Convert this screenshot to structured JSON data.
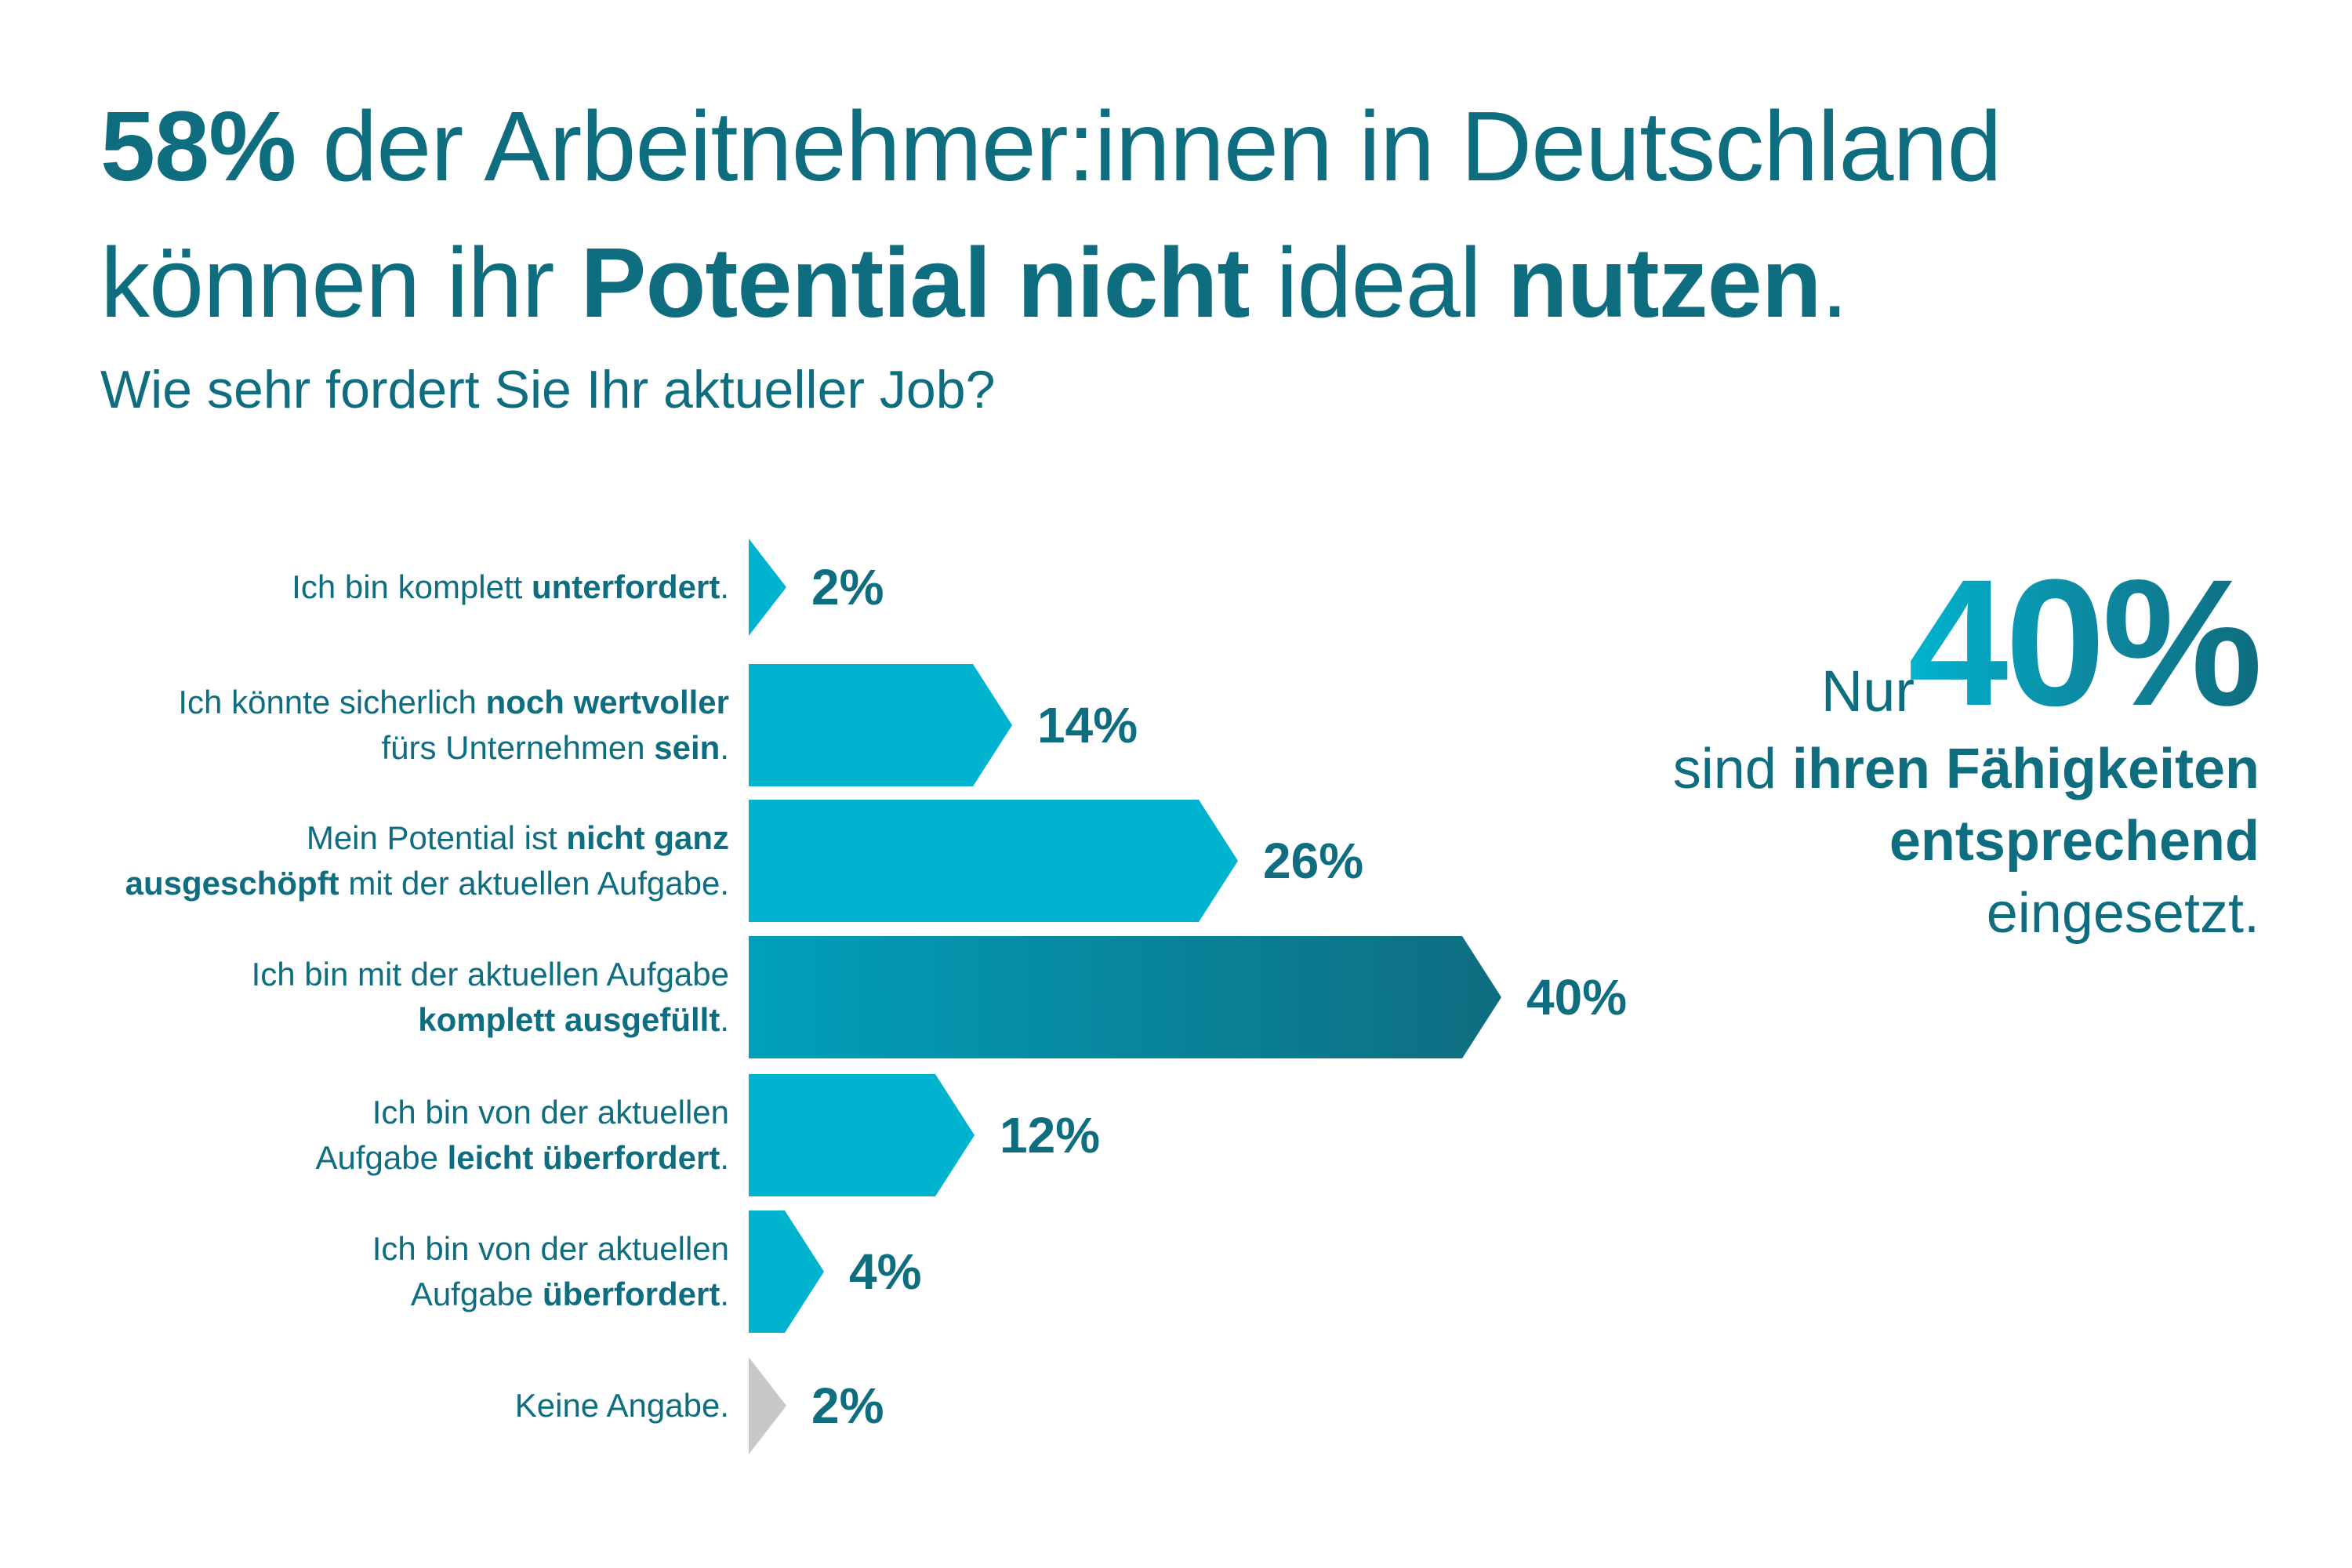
{
  "headline": {
    "line1_bold": "58%",
    "line1_rest": " der Arbeitnehmer:innen in Deutschland",
    "line2_a": "können ihr ",
    "line2_bold1": "Potential nicht",
    "line2_b": " ideal ",
    "line2_bold2": "nutzen",
    "line2_end": "."
  },
  "subtitle": "Wie sehr fordert Sie Ihr aktueller Job?",
  "callout": {
    "nur": "Nur",
    "value": "40%",
    "line2_a": "sind ",
    "line2_bold": "ihren Fähigkeiten",
    "line3_bold": "entsprechend",
    "line4": "eingesetzt."
  },
  "colors": {
    "primary_text": "#0f6d80",
    "bar_cyan": "#00b4cf",
    "bar_dark_start": "#00a0bb",
    "bar_dark_end": "#0f6d80",
    "bar_gray": "#c8c8c8"
  },
  "chart_data": {
    "type": "bar",
    "orientation": "horizontal",
    "categories": [
      "Ich bin komplett unterfordert.",
      "Ich könnte sicherlich noch wertvoller fürs Unternehmen sein.",
      "Mein Potential ist nicht ganz ausgeschöpft mit der aktuellen Aufgabe.",
      "Ich bin mit der aktuellen Aufgabe komplett ausgefüllt.",
      "Ich bin von der aktuellen Aufgabe leicht überfordert.",
      "Ich bin von der aktuellen Aufgabe überfordert.",
      "Keine Angabe."
    ],
    "values": [
      2,
      14,
      26,
      40,
      12,
      4,
      2
    ],
    "value_labels": [
      "2%",
      "14%",
      "26%",
      "40%",
      "12%",
      "4%",
      "2%"
    ],
    "unit": "%",
    "highlight_index": 3,
    "muted_index": 6,
    "xlim": [
      0,
      40
    ],
    "grid": false,
    "legend": "none"
  },
  "labels": [
    {
      "a": "Ich bin komplett ",
      "b": "unterfordert",
      "c": "."
    },
    {
      "a": "Ich könnte sicherlich ",
      "b": "noch wertvoller",
      "c": "",
      "br": true,
      "d": "fürs Unternehmen ",
      "e": "sein",
      "f": "."
    },
    {
      "a": "Mein Potential ist ",
      "b": "nicht ganz",
      "c": "",
      "br": true,
      "d": "",
      "e": "ausgeschöpft",
      "f": " mit der aktuellen Aufgabe."
    },
    {
      "a": "Ich bin mit der aktuellen Aufgabe",
      "b": "",
      "c": "",
      "br": true,
      "d": "",
      "e": "komplett ausgefüllt",
      "f": "."
    },
    {
      "a": "Ich bin von der aktuellen",
      "b": "",
      "c": "",
      "br": true,
      "d": "Aufgabe ",
      "e": "leicht überfordert",
      "f": "."
    },
    {
      "a": "Ich bin von der aktuellen",
      "b": "",
      "c": "",
      "br": true,
      "d": "Aufgabe ",
      "e": "überfordert",
      "f": "."
    },
    {
      "a": "Keine Angabe.",
      "b": "",
      "c": ""
    }
  ]
}
